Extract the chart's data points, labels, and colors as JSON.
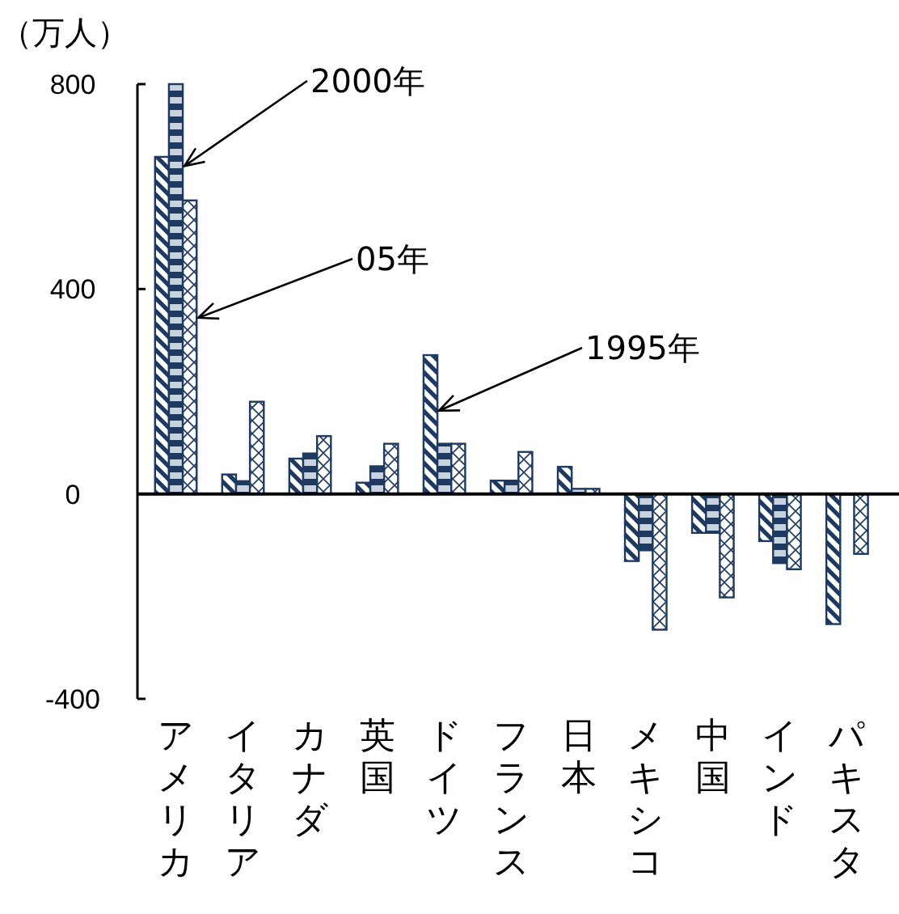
{
  "chart_data": {
    "type": "bar",
    "ylabel": "（万人）",
    "categories": [
      "アメリカ",
      "イタリア",
      "カナダ",
      "英国",
      "ドイツ",
      "フランス",
      "日本",
      "メキシコ",
      "中国",
      "インド",
      "パキスタ"
    ],
    "series": [
      {
        "name": "1995年",
        "color": "#1f3a60",
        "values": [
          658,
          38,
          69,
          22,
          271,
          26,
          53,
          -131,
          -76,
          -92,
          -254
        ]
      },
      {
        "name": "2000年",
        "color": "#1f3a60",
        "values": [
          800,
          25,
          79,
          54,
          98,
          26,
          10,
          -110,
          -76,
          -135,
          0
        ]
      },
      {
        "name": "05年",
        "color": "#1f3a60",
        "values": [
          573,
          180,
          113,
          98,
          98,
          82,
          10,
          -265,
          -202,
          -147,
          -117
        ]
      }
    ],
    "ylim": [
      -400,
      800
    ],
    "yticks": [
      -400,
      0,
      400,
      800
    ]
  }
}
